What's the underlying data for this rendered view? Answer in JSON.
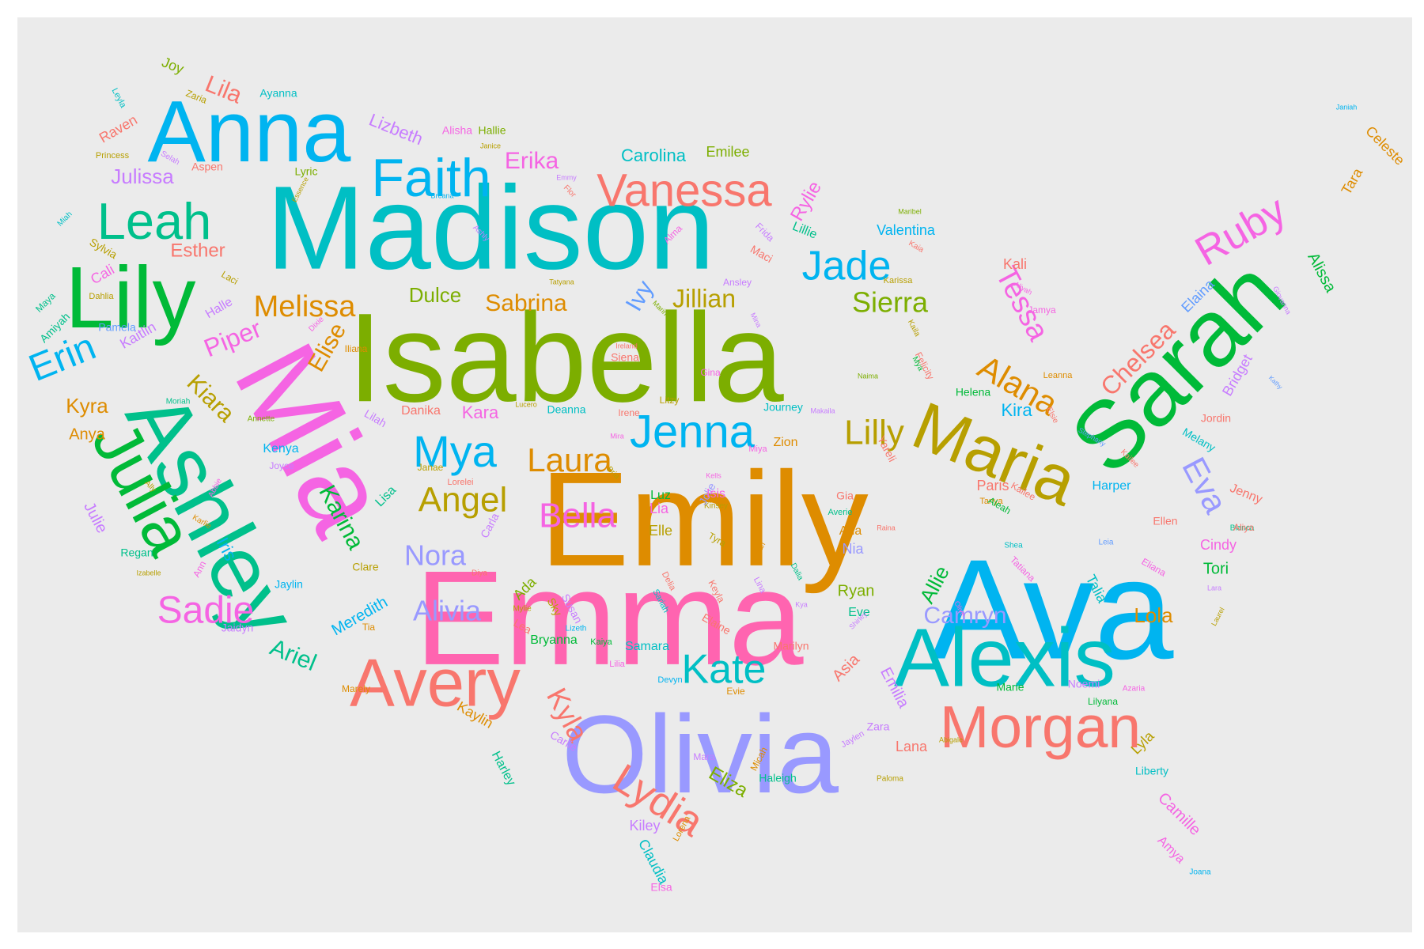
{
  "palette": {
    "red": "#F8766D",
    "orange": "#DE8C00",
    "olive": "#B79F00",
    "lime": "#7CAE00",
    "green": "#00BA38",
    "teal": "#00C08B",
    "cyan": "#00BFC4",
    "azure": "#00B4F0",
    "blue": "#619CFF",
    "violet": "#C77CFF",
    "magenta": "#F564E3",
    "pink": "#FF64B0",
    "lavender": "#9999FF"
  },
  "words": [
    "Madison",
    "Isabella",
    "Emily",
    "Ava",
    "Emma",
    "Olivia",
    "Mia",
    "Ashley",
    "Alexis",
    "Sarah",
    "Anna",
    "Lily",
    "Julia",
    "Avery",
    "Morgan",
    "Maria",
    "Vanessa",
    "Faith",
    "Leah",
    "Jenna",
    "Jade",
    "Ruby",
    "Lydia",
    "Kate",
    "Mya",
    "Laura",
    "Bella",
    "Angel",
    "Lilly",
    "Melissa",
    "Sadie",
    "Sierra",
    "Alana",
    "Tessa",
    "Chelsea",
    "Eva",
    "Alivia",
    "Nora",
    "Camryn",
    "Karina",
    "Kyla",
    "Erin",
    "Piper",
    "Elise",
    "Kiara",
    "Dulce",
    "Sabrina",
    "Jillian",
    "Ivy",
    "Erika",
    "Lila",
    "Lizbeth",
    "Julissa",
    "Esther",
    "Carolina",
    "Emilee",
    "Valentina",
    "Rylie",
    "Alissa",
    "Celeste",
    "Tara",
    "Elaina",
    "Bridget",
    "Kira",
    "Helena",
    "Lola",
    "Tori",
    "Cindy",
    "Ellen",
    "Jenny",
    "Harper",
    "Talia",
    "Allie",
    "Ryan",
    "Eve",
    "Nia",
    "Aria",
    "Asia",
    "Emilia",
    "Lana",
    "Zara",
    "Lyla",
    "Camille",
    "Amya",
    "Kiley",
    "Claudia",
    "Eliza",
    "Samara",
    "Bryanna",
    "Meredith",
    "Ariel",
    "Regan",
    "Jaylin",
    "Julie",
    "Iris",
    "Kyra",
    "Anya",
    "Kenya",
    "Lisa",
    "Clare",
    "Kaitlin",
    "Pamela",
    "Amiyah",
    "Cali",
    "Sylvia",
    "Dahlia",
    "Halle",
    "Laci",
    "Hallie",
    "Alisha",
    "Aspen",
    "Raven",
    "Princess",
    "Ayanna",
    "Joy",
    "Zaria",
    "Leyla",
    "Selah",
    "Janice",
    "Breana",
    "Emmy",
    "Flor",
    "Lyric",
    "Essence",
    "Ashly",
    "Alma",
    "Frida",
    "Lillie",
    "Maci",
    "Kaia",
    "Karissa",
    "Maribel",
    "Tatyana",
    "Ansley",
    "Marin",
    "Mina",
    "Kali",
    "Jamya",
    "Aliyah",
    "Giovanna",
    "Leanna",
    "Kathy",
    "Elsie",
    "Kailee",
    "Siena",
    "Ireland",
    "Gina",
    "Naima",
    "Felicity",
    "Kaila",
    "Mya",
    "Iliana",
    "Dixie",
    "Maya",
    "Miah",
    "Moriah",
    "Annette",
    "Lilah",
    "Danika",
    "Kara",
    "Deanna",
    "Lucero",
    "Litzy",
    "Irene",
    "Mira",
    "Journey",
    "Makaila",
    "Zion",
    "Miya",
    "Yareli",
    "Stephany",
    "Melany",
    "Jordin",
    "Paris",
    "Tanya",
    "Kailee",
    "Aleah",
    "Shea",
    "Blanca",
    "Aliya",
    "Leia",
    "Raina",
    "Tatiana",
    "Eliana",
    "Lara",
    "Laurel",
    "Azaria",
    "Noemi",
    "Lilyana",
    "Liberty",
    "Joana",
    "Janiah",
    "Marie",
    "Kya",
    "Dalia",
    "Shirley",
    "Olive",
    "Amari",
    "Kinsey",
    "Jolie",
    "Tyra",
    "Kells",
    "Gia",
    "Averie",
    "Isis",
    "Luz",
    "Lia",
    "Elle",
    "Lorelei",
    "Bria",
    "Janae",
    "Joyce",
    "Ally",
    "Abbie",
    "Karlie",
    "Izabelle",
    "Ann",
    "Jaidyn",
    "Tia",
    "Diya",
    "Carla",
    "Ada",
    "Mylie",
    "Sky",
    "Susan",
    "Lizeth",
    "Lea",
    "Kaiya",
    "Lilia",
    "Devyn",
    "Delia",
    "Sariah",
    "Keyla",
    "Lina",
    "Elaine",
    "Marilyn",
    "Evie",
    "Marely",
    "Kaylin",
    "Harley",
    "Carlie",
    "Mara",
    "Micah",
    "Haleigh",
    "Jaylen",
    "Lorena",
    "Elsa",
    "Paloma",
    "Abigale"
  ],
  "names": {
    "big": [
      "Madison",
      "Isabella",
      "Emily",
      "Ava",
      "Emma",
      "Olivia",
      "Mia",
      "Ashley",
      "Alexis",
      "Sarah"
    ]
  }
}
